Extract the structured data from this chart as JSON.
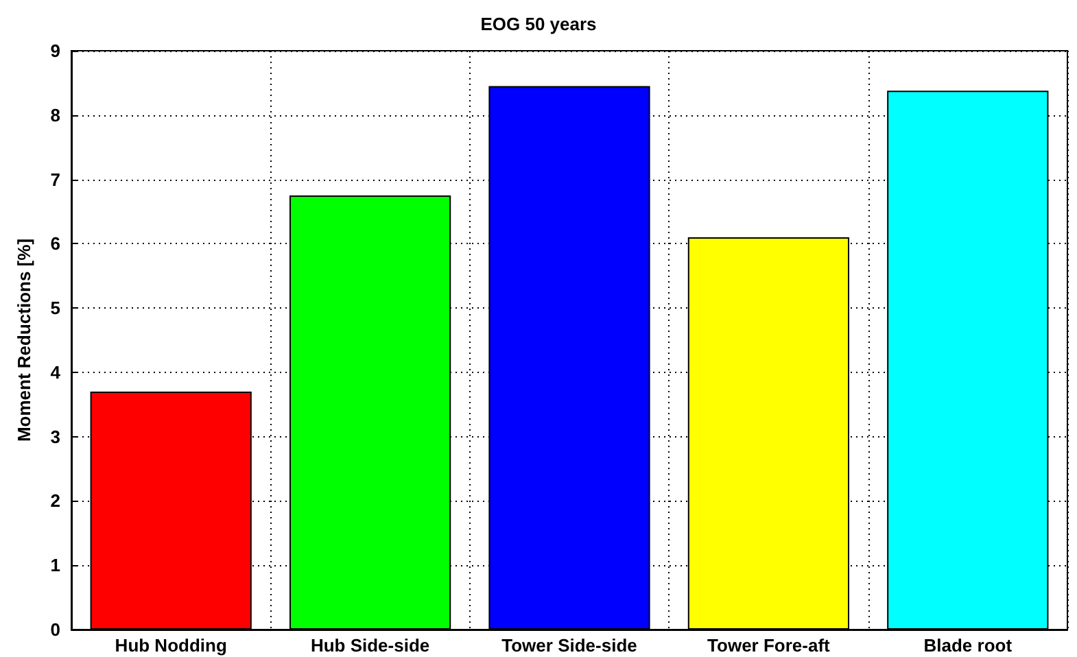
{
  "chart_data": {
    "type": "bar",
    "title": "EOG 50 years",
    "ylabel": "Moment Reductions [%]",
    "categories": [
      "Hub Nodding",
      "Hub Side-side",
      "Tower Side-side",
      "Tower Fore-aft",
      "Blade root"
    ],
    "values": [
      3.7,
      6.75,
      8.45,
      6.1,
      8.38
    ],
    "colors": [
      "#ff0000",
      "#00ff00",
      "#0000ff",
      "#ffff00",
      "#00ffff"
    ],
    "ylim": [
      0,
      9
    ],
    "yticks": [
      0,
      1,
      2,
      3,
      4,
      5,
      6,
      7,
      8,
      9
    ],
    "grid": true
  }
}
